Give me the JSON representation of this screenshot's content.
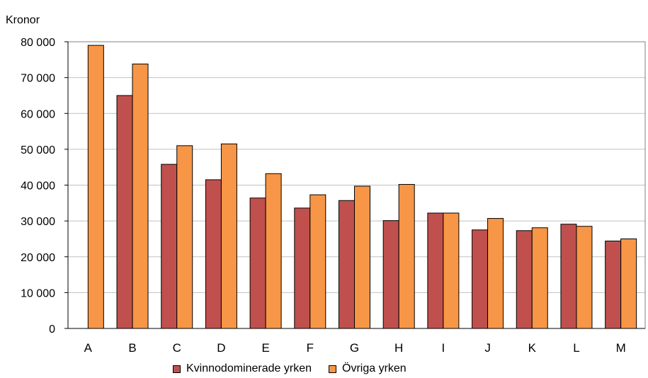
{
  "chart_data": {
    "type": "bar",
    "title": "",
    "ylabel": "Kronor",
    "xlabel": "",
    "categories": [
      "A",
      "B",
      "C",
      "D",
      "E",
      "F",
      "G",
      "H",
      "I",
      "J",
      "K",
      "L",
      "M"
    ],
    "series": [
      {
        "name": "Kvinnodominerade yrken",
        "color": "#c0504d",
        "values": [
          null,
          65000,
          45800,
          41500,
          36400,
          33600,
          35700,
          30100,
          32200,
          27500,
          27300,
          29100,
          24400
        ]
      },
      {
        "name": "Övriga yrken",
        "color": "#f79646",
        "values": [
          79000,
          73800,
          51000,
          51500,
          43200,
          37300,
          39700,
          40200,
          32200,
          30700,
          28100,
          28500,
          25000
        ]
      }
    ],
    "ylim": [
      0,
      80000
    ],
    "yticks": [
      0,
      10000,
      20000,
      30000,
      40000,
      50000,
      60000,
      70000,
      80000
    ],
    "ytick_labels": [
      "0",
      "10 000",
      "20 000",
      "30 000",
      "40 000",
      "50 000",
      "60 000",
      "70 000",
      "80 000"
    ],
    "grid": true,
    "legend_position": "bottom"
  }
}
